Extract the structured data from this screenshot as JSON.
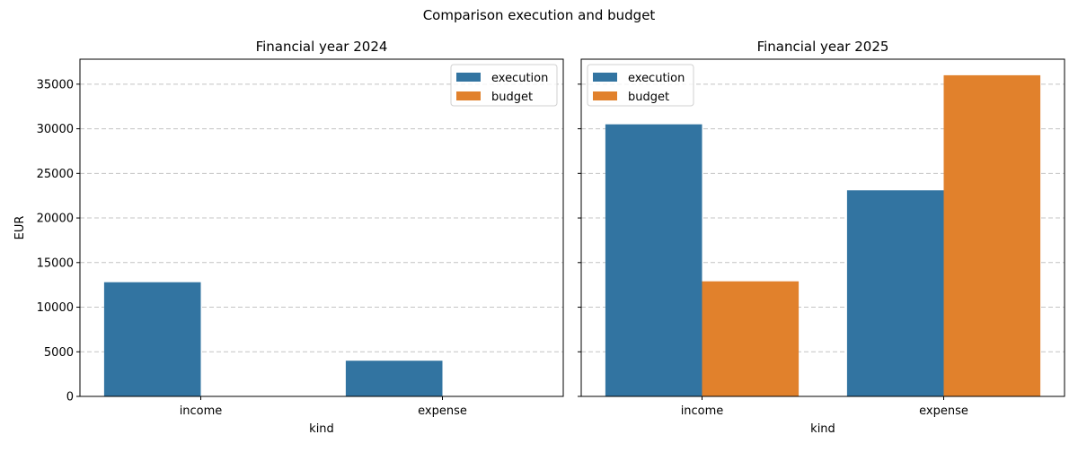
{
  "chart_data": {
    "suptitle": "Comparison execution and budget",
    "colors": {
      "execution": "#3274a1",
      "budget": "#e1812c"
    },
    "charts": [
      {
        "type": "bar",
        "title": "Financial year 2024",
        "xlabel": "kind",
        "ylabel": "EUR",
        "categories": [
          "income",
          "expense"
        ],
        "series": [
          {
            "name": "execution",
            "values": [
              12800,
              4000
            ]
          },
          {
            "name": "budget",
            "values": [
              null,
              null
            ]
          }
        ],
        "ylim": [
          0,
          37800
        ],
        "yticks": [
          0,
          5000,
          10000,
          15000,
          20000,
          25000,
          30000,
          35000
        ],
        "grid": "y dashed",
        "legend": "top-right"
      },
      {
        "type": "bar",
        "title": "Financial year 2025",
        "xlabel": "kind",
        "ylabel": "",
        "categories": [
          "income",
          "expense"
        ],
        "series": [
          {
            "name": "execution",
            "values": [
              30500,
              23100
            ]
          },
          {
            "name": "budget",
            "values": [
              12900,
              36000
            ]
          }
        ],
        "ylim": [
          0,
          37800
        ],
        "yticks": [
          0,
          5000,
          10000,
          15000,
          20000,
          25000,
          30000,
          35000
        ],
        "grid": "y dashed",
        "legend": "top-left"
      }
    ]
  }
}
